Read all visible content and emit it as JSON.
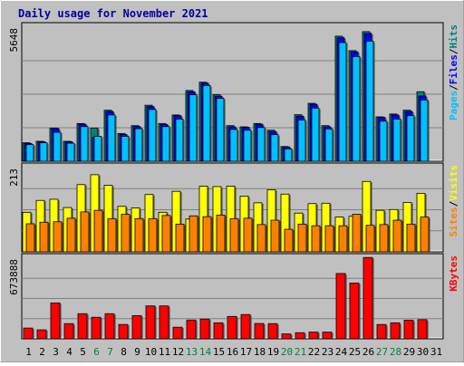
{
  "chart_data": {
    "type": "bar",
    "title": "Daily usage for November 2021",
    "categories": [
      "1",
      "2",
      "3",
      "4",
      "5",
      "6",
      "7",
      "8",
      "9",
      "10",
      "11",
      "12",
      "13",
      "14",
      "15",
      "16",
      "17",
      "18",
      "19",
      "20",
      "21",
      "22",
      "23",
      "24",
      "25",
      "26",
      "27",
      "28",
      "29",
      "30",
      "31"
    ],
    "weekend_days": [
      "6",
      "7",
      "13",
      "14",
      "20",
      "21",
      "27",
      "28"
    ],
    "panels": [
      {
        "name": "hits-files-pages",
        "ymax_label": "5648",
        "ymax": 5648,
        "legend": [
          {
            "label": "Pages",
            "color": "#00c0ff"
          },
          {
            "label": "Files",
            "color": "#0000ff"
          },
          {
            "label": "Hits",
            "color": "#008080"
          }
        ],
        "series": [
          {
            "name": "Hits",
            "color": "#008080",
            "values": [
              780,
              840,
              1400,
              840,
              1590,
              1400,
              2150,
              1170,
              1500,
              2360,
              1590,
              1950,
              2980,
              3330,
              2800,
              1500,
              1450,
              1590,
              1310,
              620,
              1960,
              2440,
              1500,
              5270,
              4660,
              5460,
              1870,
              1990,
              2150,
              2930,
              0
            ]
          },
          {
            "name": "Files",
            "color": "#0000ff",
            "values": [
              750,
              820,
              1380,
              820,
              1560,
              1000,
              2100,
              1130,
              1460,
              2300,
              1550,
              1920,
              2930,
              3290,
              2740,
              1450,
              1430,
              1560,
              1250,
              600,
              1900,
              2400,
              1450,
              5200,
              4610,
              5380,
              1850,
              1950,
              2100,
              2750,
              0
            ]
          },
          {
            "name": "Pages",
            "color": "#00c0ff",
            "values": [
              700,
              780,
              1220,
              760,
              1460,
              1050,
              1950,
              1050,
              1370,
              2180,
              1460,
              1780,
              2800,
              3190,
              2650,
              1340,
              1310,
              1420,
              1120,
              520,
              1740,
              2240,
              1360,
              5000,
              4410,
              5060,
              1690,
              1780,
              1920,
              2580,
              0
            ]
          }
        ]
      },
      {
        "name": "visits-sites",
        "ymax_label": "213",
        "ymax": 213,
        "legend": [
          {
            "label": "Sites",
            "color": "#ff8000"
          },
          {
            "label": "Visits",
            "color": "#ffff00"
          }
        ],
        "series": [
          {
            "name": "Visits",
            "color": "#ffff00",
            "values": [
              100,
              130,
              133,
              112,
              170,
              195,
              168,
              115,
              111,
              145,
              100,
              153,
              83,
              166,
              165,
              166,
              141,
              124,
              157,
              146,
              98,
              122,
              123,
              88,
              90,
              178,
              105,
              107,
              125,
              148,
              0
            ]
          },
          {
            "name": "Sites",
            "color": "#ff8000",
            "values": [
              71,
              75,
              76,
              85,
              101,
              105,
              84,
              95,
              84,
              84,
              92,
              70,
              91,
              89,
              93,
              84,
              85,
              69,
              80,
              57,
              70,
              66,
              66,
              66,
              95,
              67,
              69,
              80,
              70,
              88,
              0
            ]
          }
        ]
      },
      {
        "name": "kbytes",
        "ymax_label": "673888",
        "ymax": 673888,
        "legend": [
          {
            "label": "KBytes",
            "color": "#ff0000"
          }
        ],
        "series": [
          {
            "name": "KBytes",
            "color": "#ff0000",
            "values": [
              90000,
              75000,
              300000,
              127000,
              210000,
              180000,
              210000,
              120000,
              194000,
              275000,
              275000,
              97000,
              157000,
              165000,
              134000,
              187000,
              203000,
              128000,
              127000,
              41000,
              51000,
              56000,
              56000,
              546000,
              466000,
              680000,
              120000,
              134000,
              156000,
              160000,
              0
            ]
          }
        ]
      }
    ]
  }
}
